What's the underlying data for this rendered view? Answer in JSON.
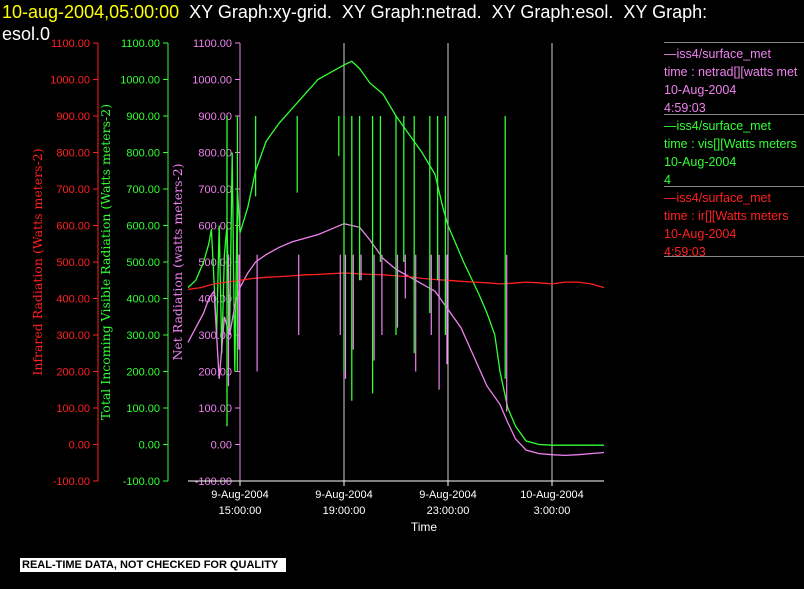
{
  "title": {
    "date": "10-aug-2004,05:00:00",
    "rest": "  XY Graph:xy-grid.  XY Graph:netrad.  XY Graph:esol.  XY Graph:",
    "line2": "esol.0"
  },
  "footer": "REAL-TIME DATA, NOT CHECKED FOR QUALITY",
  "legend": [
    {
      "source": "—iss4/surface_met",
      "var": "time : netrad[][watts met",
      "date": "10-Aug-2004",
      "time": "4:59:03",
      "color": "#ee82ee"
    },
    {
      "source": "—iss4/surface_met",
      "var": "time : vis[][Watts meters",
      "date": "10-Aug-2004",
      "time": "4",
      "color": "#32ff32"
    },
    {
      "source": "—iss4/surface_met",
      "var": "time : ir[][Watts meters",
      "date": "10-Aug-2004",
      "time": "4:59:03",
      "color": "#ff2020"
    }
  ],
  "colors": {
    "ir": "#ff2020",
    "vis": "#32ff32",
    "netrad": "#ee82ee",
    "axis": "#ffffff",
    "vgrid": "#d0d0d0"
  },
  "chart_data": {
    "type": "line",
    "xlabel": "Time",
    "x_ticks": [
      {
        "line1": "9-Aug-2004",
        "line2": "15:00:00",
        "hours": 15
      },
      {
        "line1": "9-Aug-2004",
        "line2": "19:00:00",
        "hours": 19
      },
      {
        "line1": "9-Aug-2004",
        "line2": "23:00:00",
        "hours": 23
      },
      {
        "line1": "10-Aug-2004",
        "line2": "3:00:00",
        "hours": 27
      }
    ],
    "xlim_hours": [
      13.0,
      29.0
    ],
    "vgrid_hours": [
      19,
      23,
      27
    ],
    "y_ticks": [
      "-100.00",
      "0.00",
      "100.00",
      "200.00",
      "300.00",
      "400.00",
      "500.00",
      "600.00",
      "700.00",
      "800.00",
      "900.00",
      "1000.00",
      "1100.00"
    ],
    "ylim": [
      -100,
      1100
    ],
    "axes": [
      {
        "key": "ir",
        "label": "Infrared Radiation (Watts meters-2)",
        "color": "#ff2020"
      },
      {
        "key": "vis",
        "label": "Total Incoming Visible Radiation (Watts meters-2)",
        "color": "#32ff32"
      },
      {
        "key": "netrad",
        "label": "Net Radiation (watts meters-2)",
        "color": "#ee82ee"
      }
    ],
    "series": [
      {
        "name": "time : vis[][Watts meters",
        "key": "vis",
        "color": "#32ff32",
        "x": [
          13.0,
          13.3,
          13.6,
          13.8,
          13.9,
          14.0,
          14.1,
          14.2,
          14.3,
          14.4,
          14.5,
          14.6,
          14.7,
          14.8,
          14.9,
          15.0,
          15.3,
          15.6,
          16.0,
          16.5,
          17.0,
          17.5,
          18.0,
          18.5,
          19.0,
          19.3,
          19.6,
          20.0,
          20.5,
          21.0,
          21.5,
          22.0,
          22.5,
          22.8,
          23.0,
          23.3,
          23.6,
          24.0,
          24.2,
          24.5,
          24.8,
          25.0,
          25.3,
          25.6,
          26.0,
          26.5,
          27.0,
          27.5,
          28.0,
          28.5,
          29.0
        ],
        "y": [
          430,
          450,
          500,
          550,
          590,
          450,
          300,
          600,
          250,
          520,
          600,
          300,
          800,
          200,
          700,
          580,
          650,
          750,
          830,
          880,
          920,
          960,
          1000,
          1020,
          1040,
          1050,
          1030,
          990,
          960,
          900,
          850,
          800,
          740,
          650,
          600,
          550,
          500,
          440,
          410,
          360,
          300,
          200,
          100,
          50,
          10,
          0,
          -2,
          -2,
          -2,
          -2,
          -2
        ]
      },
      {
        "name": "time : netrad[][watts met",
        "key": "netrad",
        "color": "#ee82ee",
        "x": [
          13.0,
          13.3,
          13.6,
          13.8,
          14.0,
          14.2,
          14.4,
          14.6,
          14.8,
          15.0,
          15.3,
          15.6,
          16.0,
          16.5,
          17.0,
          17.5,
          18.0,
          18.5,
          19.0,
          19.3,
          19.6,
          20.0,
          20.5,
          21.0,
          21.5,
          22.0,
          22.5,
          23.0,
          23.5,
          24.0,
          24.5,
          25.0,
          25.3,
          25.6,
          26.0,
          26.5,
          27.0,
          27.5,
          28.0,
          28.5,
          29.0
        ],
        "y": [
          280,
          320,
          360,
          400,
          420,
          180,
          350,
          300,
          380,
          430,
          470,
          500,
          520,
          540,
          555,
          565,
          575,
          590,
          605,
          600,
          595,
          560,
          510,
          480,
          460,
          440,
          420,
          370,
          320,
          240,
          160,
          110,
          60,
          15,
          -15,
          -25,
          -28,
          -30,
          -28,
          -25,
          -22
        ]
      },
      {
        "name": "time : ir[][Watts meters",
        "key": "ir",
        "color": "#ff2020",
        "x": [
          13.0,
          13.5,
          14.0,
          14.5,
          15.0,
          15.5,
          16.0,
          16.5,
          17.0,
          17.5,
          18.0,
          18.5,
          19.0,
          19.5,
          20.0,
          20.5,
          21.0,
          21.5,
          22.0,
          22.5,
          23.0,
          23.5,
          24.0,
          24.5,
          25.0,
          25.5,
          26.0,
          26.5,
          27.0,
          27.5,
          28.0,
          28.5,
          29.0
        ],
        "y": [
          425,
          430,
          440,
          445,
          450,
          455,
          458,
          460,
          462,
          465,
          466,
          468,
          470,
          468,
          466,
          465,
          462,
          460,
          455,
          452,
          450,
          447,
          445,
          443,
          440,
          442,
          445,
          443,
          440,
          445,
          445,
          440,
          430
        ]
      }
    ],
    "spikes": [
      {
        "hours": 14.5,
        "vis": 50,
        "netrad": 160
      },
      {
        "hours": 14.9,
        "vis": 200,
        "netrad": 260
      },
      {
        "hours": 15.6,
        "vis": 680,
        "netrad": 200
      },
      {
        "hours": 17.2,
        "vis": 690,
        "netrad": 300
      },
      {
        "hours": 18.8,
        "vis": 790,
        "netrad": 300
      },
      {
        "hours": 19.0,
        "vis": 200,
        "netrad": 180
      },
      {
        "hours": 19.3,
        "vis": 120,
        "netrad": 260
      },
      {
        "hours": 19.6,
        "vis": 450,
        "netrad": 450
      },
      {
        "hours": 20.1,
        "vis": 140,
        "netrad": 230
      },
      {
        "hours": 20.4,
        "vis": 500,
        "netrad": 300
      },
      {
        "hours": 21.0,
        "vis": 300,
        "netrad": 320
      },
      {
        "hours": 21.3,
        "vis": 500,
        "netrad": 400
      },
      {
        "hours": 21.7,
        "vis": 250,
        "netrad": 200
      },
      {
        "hours": 22.3,
        "vis": 360,
        "netrad": 300
      },
      {
        "hours": 22.6,
        "vis": 450,
        "netrad": 150
      },
      {
        "hours": 22.9,
        "vis": 300,
        "netrad": 220
      },
      {
        "hours": 25.2,
        "vis": 180,
        "netrad": 90
      }
    ]
  }
}
